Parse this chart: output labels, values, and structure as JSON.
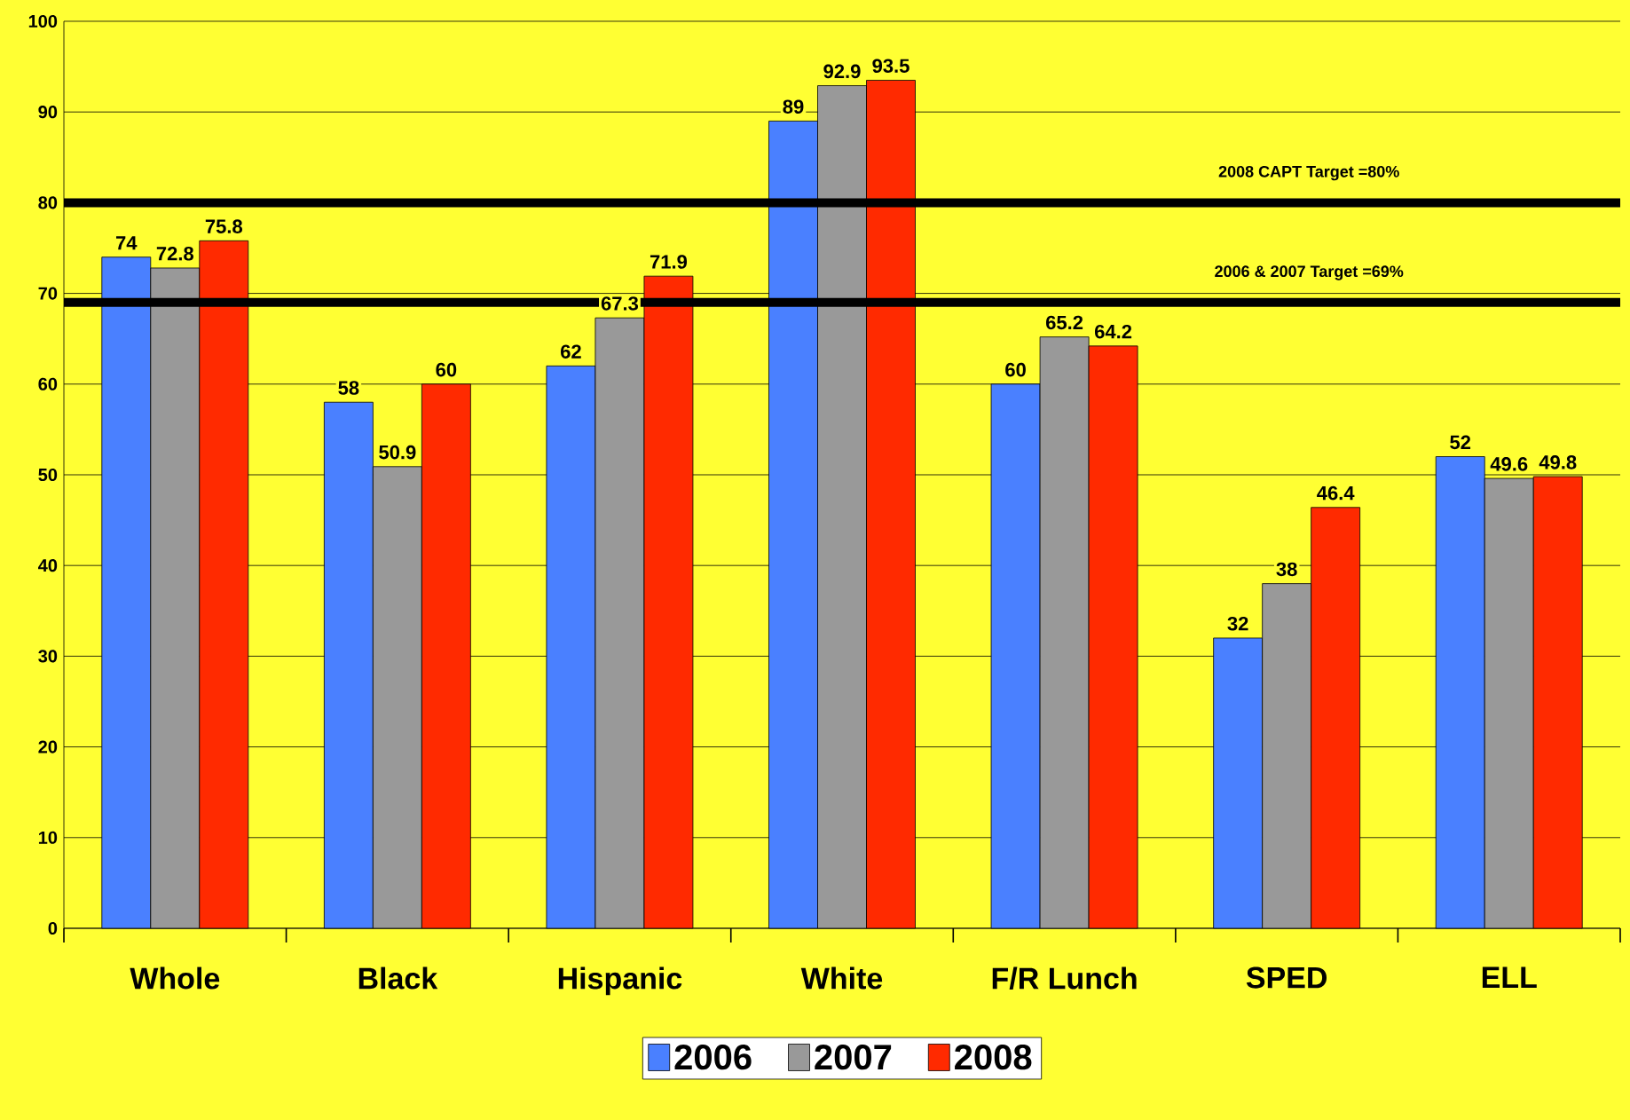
{
  "chart_data": {
    "type": "bar",
    "categories": [
      "Whole",
      "Black",
      "Hispanic",
      "White",
      "F/R Lunch",
      "SPED",
      "ELL"
    ],
    "series": [
      {
        "name": "2006",
        "color": "#4a80ff",
        "values": [
          74,
          58,
          62,
          89,
          60,
          32,
          52
        ]
      },
      {
        "name": "2007",
        "color": "#999999",
        "values": [
          72.8,
          50.9,
          67.3,
          92.9,
          65.2,
          38,
          49.6
        ]
      },
      {
        "name": "2008",
        "color": "#ff2a00",
        "values": [
          75.8,
          60,
          71.9,
          93.5,
          64.2,
          46.4,
          49.8
        ]
      }
    ],
    "ylim": [
      0,
      100
    ],
    "yticks": [
      0,
      10,
      20,
      30,
      40,
      50,
      60,
      70,
      80,
      90,
      100
    ],
    "grid": "y",
    "legend": "bottom",
    "data_labels": true,
    "ref_lines": [
      {
        "axis": "y",
        "value": 80,
        "label": "2008 CAPT Target =80%",
        "color": "#000000"
      },
      {
        "axis": "y",
        "value": 69,
        "label": "2006 & 2007 Target =69%",
        "color": "#000000"
      }
    ]
  }
}
